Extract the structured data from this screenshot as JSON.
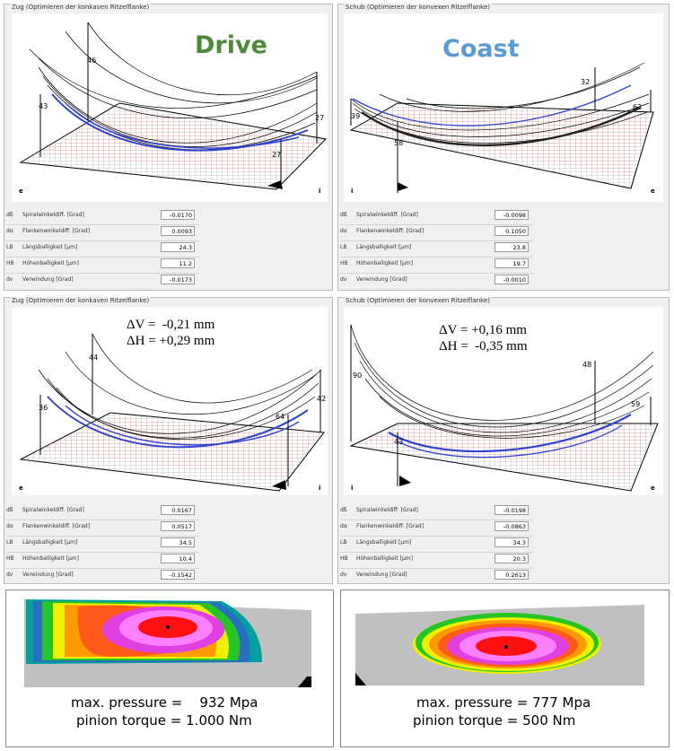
{
  "panels": [
    {
      "group_title": "Zug (Optimieren der konkaven Ritzelflanke)",
      "overlay": "Drive",
      "overlay_color": "#4f8a3a",
      "numbers": [
        "46",
        "43",
        "27",
        "27"
      ],
      "corners": [
        "e",
        "i"
      ],
      "params": [
        {
          "sym": "dß",
          "label": "Spiralwinkeldiff. [Grad]",
          "value": "-0.0170"
        },
        {
          "sym": "dα",
          "label": "Flankenwinkeldiff. [Grad]",
          "value": "0.0093"
        },
        {
          "sym": "LB",
          "label": "Längsballigkeit [µm]",
          "value": "24.3"
        },
        {
          "sym": "HB",
          "label": "Höhenballigkeit [µm]",
          "value": "11.2"
        },
        {
          "sym": "dv",
          "label": "Verwindung [Grad]",
          "value": "-0.0173"
        }
      ]
    },
    {
      "group_title": "Schub (Optimieren der konvexen Ritzelflanke)",
      "overlay": "Coast",
      "overlay_color": "#5b9bd5",
      "numbers": [
        "32",
        "39",
        "63",
        "58"
      ],
      "corners": [
        "i",
        "e"
      ],
      "params": [
        {
          "sym": "dß",
          "label": "Spiralwinkeldiff. [Grad]",
          "value": "-0.0098"
        },
        {
          "sym": "dα",
          "label": "Flankenwinkeldiff. [Grad]",
          "value": "0.1050"
        },
        {
          "sym": "LB",
          "label": "Längsballigkeit [µm]",
          "value": "23.8"
        },
        {
          "sym": "HB",
          "label": "Höhenballigkeit [µm]",
          "value": "19.7"
        },
        {
          "sym": "dv",
          "label": "Verwindung [Grad]",
          "value": "-0.0010"
        }
      ]
    },
    {
      "group_title": "Zug (Optimieren der konkaven Ritzelflanke)",
      "overlay_lines": [
        "ΔV =  -0,21 mm",
        "ΔH = +0,29 mm"
      ],
      "numbers": [
        "44",
        "36",
        "42",
        "64"
      ],
      "corners": [
        "e",
        "i"
      ],
      "params": [
        {
          "sym": "dß",
          "label": "Spiralwinkeldiff. [Grad]",
          "value": "0.0167"
        },
        {
          "sym": "dα",
          "label": "Flankenwinkeldiff. [Grad]",
          "value": "0.0517"
        },
        {
          "sym": "LB",
          "label": "Längsballigkeit [µm]",
          "value": "34.5"
        },
        {
          "sym": "HB",
          "label": "Höhenballigkeit [µm]",
          "value": "10.4"
        },
        {
          "sym": "dv",
          "label": "Verwindung [Grad]",
          "value": "-0.1542"
        }
      ]
    },
    {
      "group_title": "Schub (Optimieren der konvexen Ritzelflanke)",
      "overlay_lines": [
        "ΔV = +0,16 mm",
        "ΔH =  -0,35 mm"
      ],
      "numbers": [
        "90",
        "48",
        "59",
        "43"
      ],
      "corners": [
        "i",
        "e"
      ],
      "params": [
        {
          "sym": "dß",
          "label": "Spiralwinkeldiff. [Grad]",
          "value": "-0.0198"
        },
        {
          "sym": "dα",
          "label": "Flankenwinkeldiff. [Grad]",
          "value": "-0.0863"
        },
        {
          "sym": "LB",
          "label": "Längsballigkeit [µm]",
          "value": "34.3"
        },
        {
          "sym": "HB",
          "label": "Höhenballigkeit [µm]",
          "value": "20.3"
        },
        {
          "sym": "dv",
          "label": "Verwindung [Grad]",
          "value": "0.2613"
        }
      ]
    }
  ],
  "contact": [
    {
      "pressure": "max. pressure =    932 Mpa",
      "torque": "pinion torque = 1.000 Nm"
    },
    {
      "pressure": "max. pressure = 777 Mpa",
      "torque": "pinion torque = 500 Nm"
    }
  ]
}
